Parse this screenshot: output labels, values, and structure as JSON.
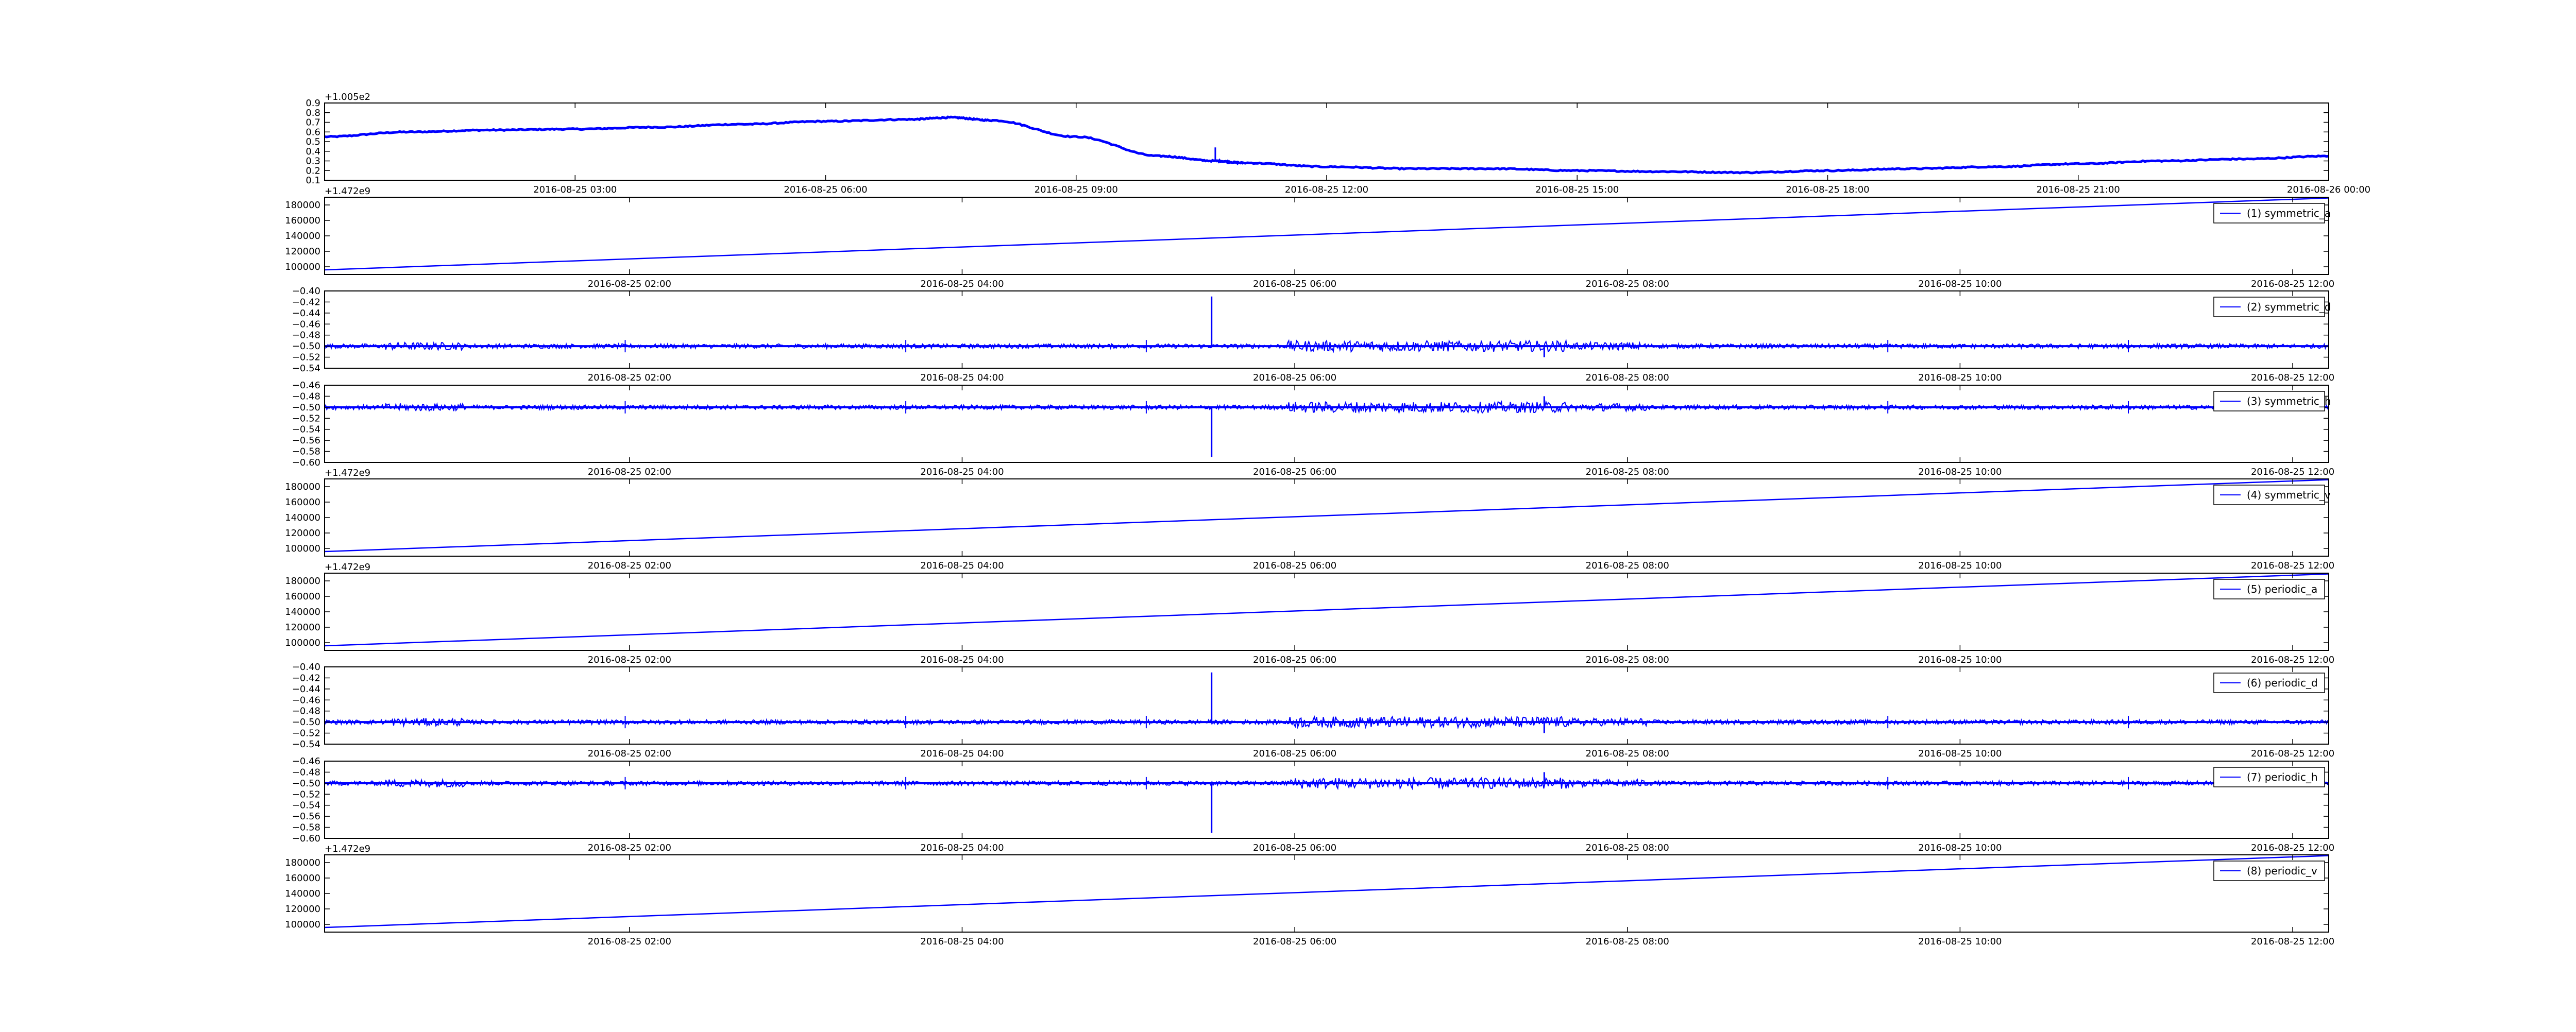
{
  "colors": {
    "series": "#0000ff",
    "axis": "#000000",
    "background": "#ffffff"
  },
  "chart_data": [
    {
      "type": "line",
      "offset_label": "+1.005e2",
      "ylim": [
        0.1,
        0.9
      ],
      "yticks": [
        "0.1",
        "0.2",
        "0.3",
        "0.4",
        "0.5",
        "0.6",
        "0.7",
        "0.8",
        "0.9"
      ],
      "xlim": [
        "2016-08-25 00:00",
        "2016-08-26 00:00"
      ],
      "xticks": [
        {
          "at": "2016-08-25 03:00",
          "label": "2016-08-25 03:00"
        },
        {
          "at": "2016-08-25 06:00",
          "label": "2016-08-25 06:00"
        },
        {
          "at": "2016-08-25 09:00",
          "label": "2016-08-25 09:00"
        },
        {
          "at": "2016-08-25 12:00",
          "label": "2016-08-25 12:00"
        },
        {
          "at": "2016-08-25 15:00",
          "label": "2016-08-25 15:00"
        },
        {
          "at": "2016-08-25 18:00",
          "label": "2016-08-25 18:00"
        },
        {
          "at": "2016-08-25 21:00",
          "label": "2016-08-25 21:00"
        },
        {
          "at": "2016-08-26 00:00",
          "label": "2016-08-26 00:00"
        }
      ],
      "series": [
        {
          "x": [
            "2016-08-25 00:00",
            "2016-08-25 01:00",
            "2016-08-25 02:00",
            "2016-08-25 03:00",
            "2016-08-25 04:00",
            "2016-08-25 05:00",
            "2016-08-25 06:00",
            "2016-08-25 07:00",
            "2016-08-25 07:30",
            "2016-08-25 08:00",
            "2016-08-25 09:00",
            "2016-08-25 10:00",
            "2016-08-25 10:40",
            "2016-08-25 11:00",
            "2016-08-25 12:00",
            "2016-08-25 13:00",
            "2016-08-25 14:00",
            "2016-08-25 15:00",
            "2016-08-25 16:00",
            "2016-08-25 17:00",
            "2016-08-25 18:00",
            "2016-08-25 19:00",
            "2016-08-25 20:00",
            "2016-08-25 21:00",
            "2016-08-25 22:00",
            "2016-08-25 23:00",
            "2016-08-26 00:00"
          ],
          "values": [
            0.55,
            0.6,
            0.62,
            0.63,
            0.65,
            0.68,
            0.71,
            0.73,
            0.75,
            0.72,
            0.55,
            0.35,
            0.3,
            0.28,
            0.24,
            0.22,
            0.22,
            0.2,
            0.19,
            0.18,
            0.2,
            0.22,
            0.24,
            0.27,
            0.3,
            0.32,
            0.35
          ]
        }
      ],
      "legend": null
    },
    {
      "type": "line",
      "offset_label": "+1.472e9",
      "ylim": [
        90000,
        190000
      ],
      "yticks": [
        "100000",
        "120000",
        "140000",
        "160000",
        "180000"
      ],
      "xlim": [
        "2016-08-25 00:10",
        "2016-08-25 12:13"
      ],
      "xticks": [
        {
          "at": "2016-08-25 02:00",
          "label": "2016-08-25 02:00"
        },
        {
          "at": "2016-08-25 04:00",
          "label": "2016-08-25 04:00"
        },
        {
          "at": "2016-08-25 06:00",
          "label": "2016-08-25 06:00"
        },
        {
          "at": "2016-08-25 08:00",
          "label": "2016-08-25 08:00"
        },
        {
          "at": "2016-08-25 10:00",
          "label": "2016-08-25 10:00"
        },
        {
          "at": "2016-08-25 12:00",
          "label": "2016-08-25 12:00"
        }
      ],
      "series": [
        {
          "x": [
            "2016-08-25 00:10",
            "2016-08-25 12:13"
          ],
          "values": [
            96000,
            189000
          ]
        }
      ],
      "legend": "(1) symmetric_a"
    },
    {
      "type": "line",
      "offset_label": "",
      "ylim": [
        -0.54,
        -0.4
      ],
      "yticks": [
        "−0.54",
        "−0.52",
        "−0.50",
        "−0.48",
        "−0.46",
        "−0.44",
        "−0.42",
        "−0.40"
      ],
      "xlim": [
        "2016-08-25 00:10",
        "2016-08-25 12:13"
      ],
      "xticks": [
        {
          "at": "2016-08-25 02:00",
          "label": "2016-08-25 02:00"
        },
        {
          "at": "2016-08-25 04:00",
          "label": "2016-08-25 04:00"
        },
        {
          "at": "2016-08-25 06:00",
          "label": "2016-08-25 06:00"
        },
        {
          "at": "2016-08-25 08:00",
          "label": "2016-08-25 08:00"
        },
        {
          "at": "2016-08-25 10:00",
          "label": "2016-08-25 10:00"
        },
        {
          "at": "2016-08-25 12:00",
          "label": "2016-08-25 12:00"
        }
      ],
      "series": [
        {
          "baseline": -0.5,
          "spikes": [
            {
              "x": "2016-08-25 05:30",
              "value": -0.41
            },
            {
              "x": "2016-08-25 07:30",
              "value": -0.52
            }
          ]
        }
      ],
      "legend": "(2) symmetric_d"
    },
    {
      "type": "line",
      "offset_label": "",
      "ylim": [
        -0.6,
        -0.46
      ],
      "yticks": [
        "−0.60",
        "−0.58",
        "−0.56",
        "−0.54",
        "−0.52",
        "−0.50",
        "−0.48",
        "−0.46"
      ],
      "xlim": [
        "2016-08-25 00:10",
        "2016-08-25 12:13"
      ],
      "xticks": [
        {
          "at": "2016-08-25 02:00",
          "label": "2016-08-25 02:00"
        },
        {
          "at": "2016-08-25 04:00",
          "label": "2016-08-25 04:00"
        },
        {
          "at": "2016-08-25 06:00",
          "label": "2016-08-25 06:00"
        },
        {
          "at": "2016-08-25 08:00",
          "label": "2016-08-25 08:00"
        },
        {
          "at": "2016-08-25 10:00",
          "label": "2016-08-25 10:00"
        },
        {
          "at": "2016-08-25 12:00",
          "label": "2016-08-25 12:00"
        }
      ],
      "series": [
        {
          "baseline": -0.5,
          "spikes": [
            {
              "x": "2016-08-25 05:30",
              "value": -0.59
            },
            {
              "x": "2016-08-25 07:30",
              "value": -0.48
            }
          ]
        }
      ],
      "legend": "(3) symmetric_h"
    },
    {
      "type": "line",
      "offset_label": "+1.472e9",
      "ylim": [
        90000,
        190000
      ],
      "yticks": [
        "100000",
        "120000",
        "140000",
        "160000",
        "180000"
      ],
      "xlim": [
        "2016-08-25 00:10",
        "2016-08-25 12:13"
      ],
      "xticks": [
        {
          "at": "2016-08-25 02:00",
          "label": "2016-08-25 02:00"
        },
        {
          "at": "2016-08-25 04:00",
          "label": "2016-08-25 04:00"
        },
        {
          "at": "2016-08-25 06:00",
          "label": "2016-08-25 06:00"
        },
        {
          "at": "2016-08-25 08:00",
          "label": "2016-08-25 08:00"
        },
        {
          "at": "2016-08-25 10:00",
          "label": "2016-08-25 10:00"
        },
        {
          "at": "2016-08-25 12:00",
          "label": "2016-08-25 12:00"
        }
      ],
      "series": [
        {
          "x": [
            "2016-08-25 00:10",
            "2016-08-25 12:13"
          ],
          "values": [
            96000,
            189000
          ]
        }
      ],
      "legend": "(4) symmetric_v"
    },
    {
      "type": "line",
      "offset_label": "+1.472e9",
      "ylim": [
        90000,
        190000
      ],
      "yticks": [
        "100000",
        "120000",
        "140000",
        "160000",
        "180000"
      ],
      "xlim": [
        "2016-08-25 00:10",
        "2016-08-25 12:13"
      ],
      "xticks": [
        {
          "at": "2016-08-25 02:00",
          "label": "2016-08-25 02:00"
        },
        {
          "at": "2016-08-25 04:00",
          "label": "2016-08-25 04:00"
        },
        {
          "at": "2016-08-25 06:00",
          "label": "2016-08-25 06:00"
        },
        {
          "at": "2016-08-25 08:00",
          "label": "2016-08-25 08:00"
        },
        {
          "at": "2016-08-25 10:00",
          "label": "2016-08-25 10:00"
        },
        {
          "at": "2016-08-25 12:00",
          "label": "2016-08-25 12:00"
        }
      ],
      "series": [
        {
          "x": [
            "2016-08-25 00:10",
            "2016-08-25 12:13"
          ],
          "values": [
            96000,
            189000
          ]
        }
      ],
      "legend": "(5) periodic_a"
    },
    {
      "type": "line",
      "offset_label": "",
      "ylim": [
        -0.54,
        -0.4
      ],
      "yticks": [
        "−0.54",
        "−0.52",
        "−0.50",
        "−0.48",
        "−0.46",
        "−0.44",
        "−0.42",
        "−0.40"
      ],
      "xlim": [
        "2016-08-25 00:10",
        "2016-08-25 12:13"
      ],
      "xticks": [
        {
          "at": "2016-08-25 02:00",
          "label": "2016-08-25 02:00"
        },
        {
          "at": "2016-08-25 04:00",
          "label": "2016-08-25 04:00"
        },
        {
          "at": "2016-08-25 06:00",
          "label": "2016-08-25 06:00"
        },
        {
          "at": "2016-08-25 08:00",
          "label": "2016-08-25 08:00"
        },
        {
          "at": "2016-08-25 10:00",
          "label": "2016-08-25 10:00"
        },
        {
          "at": "2016-08-25 12:00",
          "label": "2016-08-25 12:00"
        }
      ],
      "series": [
        {
          "baseline": -0.5,
          "spikes": [
            {
              "x": "2016-08-25 05:30",
              "value": -0.41
            },
            {
              "x": "2016-08-25 07:30",
              "value": -0.52
            }
          ]
        }
      ],
      "legend": "(6) periodic_d"
    },
    {
      "type": "line",
      "offset_label": "",
      "ylim": [
        -0.6,
        -0.46
      ],
      "yticks": [
        "−0.60",
        "−0.58",
        "−0.56",
        "−0.54",
        "−0.52",
        "−0.50",
        "−0.48",
        "−0.46"
      ],
      "xlim": [
        "2016-08-25 00:10",
        "2016-08-25 12:13"
      ],
      "xticks": [
        {
          "at": "2016-08-25 02:00",
          "label": "2016-08-25 02:00"
        },
        {
          "at": "2016-08-25 04:00",
          "label": "2016-08-25 04:00"
        },
        {
          "at": "2016-08-25 06:00",
          "label": "2016-08-25 06:00"
        },
        {
          "at": "2016-08-25 08:00",
          "label": "2016-08-25 08:00"
        },
        {
          "at": "2016-08-25 10:00",
          "label": "2016-08-25 10:00"
        },
        {
          "at": "2016-08-25 12:00",
          "label": "2016-08-25 12:00"
        }
      ],
      "series": [
        {
          "baseline": -0.5,
          "spikes": [
            {
              "x": "2016-08-25 05:30",
              "value": -0.59
            },
            {
              "x": "2016-08-25 07:30",
              "value": -0.48
            }
          ]
        }
      ],
      "legend": "(7) periodic_h"
    },
    {
      "type": "line",
      "offset_label": "+1.472e9",
      "ylim": [
        90000,
        190000
      ],
      "yticks": [
        "100000",
        "120000",
        "140000",
        "160000",
        "180000"
      ],
      "xlim": [
        "2016-08-25 00:10",
        "2016-08-25 12:13"
      ],
      "xticks": [
        {
          "at": "2016-08-25 02:00",
          "label": "2016-08-25 02:00"
        },
        {
          "at": "2016-08-25 04:00",
          "label": "2016-08-25 04:00"
        },
        {
          "at": "2016-08-25 06:00",
          "label": "2016-08-25 06:00"
        },
        {
          "at": "2016-08-25 08:00",
          "label": "2016-08-25 08:00"
        },
        {
          "at": "2016-08-25 10:00",
          "label": "2016-08-25 10:00"
        },
        {
          "at": "2016-08-25 12:00",
          "label": "2016-08-25 12:00"
        }
      ],
      "series": [
        {
          "x": [
            "2016-08-25 00:10",
            "2016-08-25 12:13"
          ],
          "values": [
            96000,
            189000
          ]
        }
      ],
      "legend": "(8) periodic_v"
    }
  ]
}
